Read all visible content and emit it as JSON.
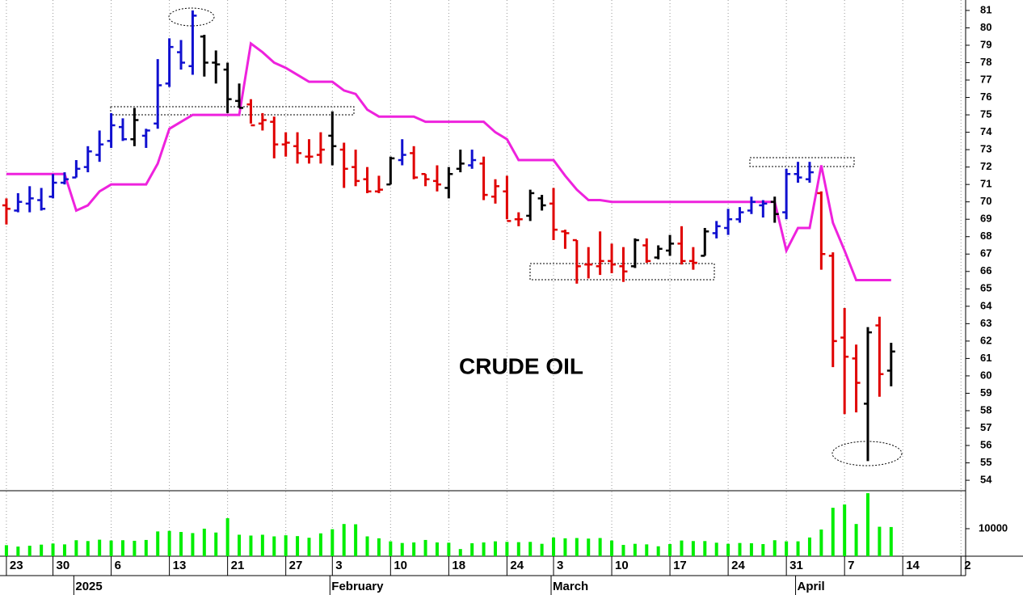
{
  "chart_data": {
    "type": "ohlc",
    "title": "CRUDE OIL",
    "high": [
      70.2,
      70.5,
      70.9,
      70.8,
      71.6,
      71.7,
      72.4,
      73.2,
      74.1,
      75.1,
      74.8,
      75.4,
      74.2,
      78.2,
      79.4,
      79.3,
      81.0,
      79.6,
      78.7,
      78.0,
      76.8,
      75.9,
      75.1,
      74.9,
      74.0,
      74.0,
      73.6,
      74.0,
      75.2,
      73.4,
      73.0,
      72.0,
      71.5,
      72.6,
      73.6,
      73.2,
      71.6,
      72.1,
      72.0,
      73.0,
      73.0,
      72.6,
      71.3,
      71.5,
      69.4,
      70.7,
      70.4,
      70.8,
      68.4,
      67.8,
      67.4,
      68.3,
      67.6,
      67.4,
      67.9,
      67.9,
      67.5,
      68.1,
      68.6,
      67.4,
      68.5,
      68.9,
      69.6,
      69.7,
      70.3,
      70.1,
      70.3,
      71.9,
      72.3,
      72.3,
      70.6,
      67.1,
      63.9,
      61.8,
      62.8,
      63.4,
      61.9
    ],
    "low": [
      68.7,
      69.4,
      69.4,
      69.5,
      70.2,
      71.0,
      71.4,
      71.7,
      72.3,
      73.1,
      73.5,
      73.2,
      73.1,
      74.2,
      76.6,
      77.6,
      77.3,
      77.2,
      76.8,
      75.1,
      75.4,
      74.5,
      74.1,
      72.5,
      72.6,
      72.2,
      72.2,
      72.2,
      72.1,
      70.8,
      70.9,
      70.5,
      70.5,
      71.0,
      72.1,
      71.3,
      70.9,
      70.6,
      70.2,
      71.7,
      71.9,
      70.1,
      69.9,
      69.0,
      68.6,
      68.9,
      69.5,
      67.8,
      67.3,
      65.3,
      65.6,
      65.8,
      65.9,
      65.4,
      66.2,
      66.5,
      66.7,
      66.9,
      66.4,
      66.1,
      66.9,
      67.9,
      68.1,
      68.8,
      69.3,
      69.1,
      68.8,
      69.0,
      71.1,
      71.1,
      66.1,
      60.5,
      57.8,
      57.9,
      55.1,
      58.8,
      59.4
    ],
    "open": [
      69.8,
      69.5,
      69.9,
      70.1,
      70.3,
      71.1,
      71.4,
      72.0,
      72.7,
      73.5,
      74.3,
      73.6,
      73.8,
      74.5,
      76.8,
      78.6,
      77.8,
      79.5,
      78.0,
      77.6,
      75.8,
      75.6,
      74.5,
      74.6,
      73.3,
      73.2,
      72.6,
      72.7,
      73.8,
      73.0,
      72.0,
      71.3,
      70.6,
      71.0,
      72.4,
      72.8,
      71.6,
      71.2,
      70.8,
      71.9,
      72.1,
      72.2,
      70.3,
      70.6,
      69.0,
      69.2,
      70.2,
      69.9,
      68.3,
      67.8,
      66.4,
      66.3,
      66.6,
      66.3,
      66.3,
      67.5,
      66.8,
      67.2,
      67.6,
      66.6,
      66.9,
      68.2,
      68.5,
      69.0,
      69.5,
      69.8,
      70.0,
      69.4,
      71.6,
      71.3,
      70.5,
      66.9,
      62.2,
      61.0,
      58.4,
      62.9,
      60.3
    ],
    "close": [
      69.6,
      70.0,
      70.2,
      69.6,
      71.1,
      71.3,
      71.9,
      72.9,
      73.3,
      74.4,
      73.6,
      74.7,
      74.1,
      76.7,
      78.9,
      78.0,
      80.7,
      78.0,
      77.9,
      75.9,
      75.4,
      74.4,
      74.7,
      73.3,
      73.4,
      72.8,
      72.6,
      73.0,
      73.2,
      71.9,
      71.2,
      70.6,
      70.7,
      72.5,
      72.7,
      71.4,
      71.3,
      71.0,
      71.6,
      72.2,
      72.4,
      70.4,
      70.9,
      68.9,
      69.0,
      70.5,
      69.8,
      68.4,
      68.2,
      66.3,
      66.4,
      66.6,
      66.4,
      66.0,
      67.8,
      66.6,
      67.3,
      67.6,
      66.6,
      66.5,
      68.3,
      68.6,
      69.0,
      69.4,
      70.0,
      69.9,
      69.3,
      71.6,
      71.4,
      71.7,
      67.0,
      62.0,
      61.1,
      59.6,
      62.5,
      60.1,
      61.4
    ],
    "colors": [
      "#e00000",
      "#1010d0",
      "#1010d0",
      "#1010d0",
      "#1010d0",
      "#1010d0",
      "#1010d0",
      "#1010d0",
      "#1010d0",
      "#1010d0",
      "#1010d0",
      "#000000",
      "#1010d0",
      "#1010d0",
      "#1010d0",
      "#1010d0",
      "#1010d0",
      "#000000",
      "#000000",
      "#000000",
      "#000000",
      "#e00000",
      "#e00000",
      "#e00000",
      "#e00000",
      "#e00000",
      "#e00000",
      "#e00000",
      "#000000",
      "#e00000",
      "#e00000",
      "#e00000",
      "#e00000",
      "#000000",
      "#1010d0",
      "#e00000",
      "#e00000",
      "#e00000",
      "#000000",
      "#000000",
      "#1010d0",
      "#e00000",
      "#e00000",
      "#e00000",
      "#e00000",
      "#000000",
      "#000000",
      "#e00000",
      "#e00000",
      "#e00000",
      "#e00000",
      "#e00000",
      "#e00000",
      "#e00000",
      "#000000",
      "#e00000",
      "#000000",
      "#000000",
      "#e00000",
      "#e00000",
      "#000000",
      "#1010d0",
      "#1010d0",
      "#1010d0",
      "#1010d0",
      "#1010d0",
      "#000000",
      "#1010d0",
      "#1010d0",
      "#1010d0",
      "#e00000",
      "#e00000",
      "#e00000",
      "#e00000",
      "#000000",
      "#e00000",
      "#000000"
    ],
    "stop_line": {
      "color": "#ee22dd",
      "values": [
        71.6,
        71.6,
        71.6,
        71.6,
        71.6,
        71.6,
        69.5,
        69.8,
        70.6,
        71.0,
        71.0,
        71.0,
        71.0,
        72.2,
        74.2,
        74.6,
        75.0,
        75.0,
        75.0,
        75.0,
        75.0,
        79.1,
        78.6,
        78.0,
        77.7,
        77.3,
        76.9,
        76.9,
        76.9,
        76.4,
        76.2,
        75.3,
        74.9,
        74.9,
        74.9,
        74.9,
        74.6,
        74.6,
        74.6,
        74.6,
        74.6,
        74.6,
        74.0,
        73.6,
        72.4,
        72.4,
        72.4,
        72.4,
        71.5,
        70.7,
        70.1,
        70.1,
        70.0,
        70.0,
        70.0,
        70.0,
        70.0,
        70.0,
        70.0,
        70.0,
        70.0,
        70.0,
        70.0,
        70.0,
        70.0,
        70.0,
        70.0,
        67.2,
        68.5,
        68.5,
        72.1,
        68.8,
        67.2,
        65.5,
        65.5,
        65.5,
        65.5
      ]
    },
    "volume": {
      "color": "#00ee00",
      "values": [
        4000,
        3500,
        3800,
        4200,
        4600,
        4300,
        5800,
        5500,
        6000,
        5700,
        5800,
        5600,
        5900,
        9000,
        9200,
        8800,
        8400,
        10000,
        8600,
        13800,
        7800,
        7500,
        7800,
        7200,
        7600,
        7300,
        6700,
        8300,
        9800,
        11700,
        11600,
        7200,
        6500,
        5400,
        4800,
        5000,
        5900,
        5000,
        4900,
        2600,
        4700,
        5000,
        5400,
        5200,
        5100,
        5200,
        4500,
        6800,
        6500,
        6600,
        6400,
        6600,
        5700,
        4100,
        4500,
        4300,
        3600,
        4400,
        5700,
        5500,
        5500,
        4900,
        4500,
        4800,
        4700,
        4400,
        5800,
        5400,
        5400,
        6800,
        9700,
        17600,
        18800,
        11700,
        22900,
        10700,
        10600
      ],
      "ylim": [
        0,
        23800
      ],
      "yticks": [
        10000
      ]
    },
    "ylim": [
      53.4,
      81.6
    ],
    "yticks": [
      54,
      55,
      56,
      57,
      58,
      59,
      60,
      61,
      62,
      63,
      64,
      65,
      66,
      67,
      68,
      69,
      70,
      71,
      72,
      73,
      74,
      75,
      76,
      77,
      78,
      79,
      80,
      81
    ],
    "xlim": [
      -0.55,
      82.4
    ],
    "xticks": [
      {
        "value": 0,
        "label": "23"
      },
      {
        "value": 4,
        "label": "30"
      },
      {
        "value": 9,
        "label": "6"
      },
      {
        "value": 14,
        "label": "13"
      },
      {
        "value": 19,
        "label": "21"
      },
      {
        "value": 24,
        "label": "27"
      },
      {
        "value": 28,
        "label": "3"
      },
      {
        "value": 33,
        "label": "10"
      },
      {
        "value": 38,
        "label": "18"
      },
      {
        "value": 43,
        "label": "24"
      },
      {
        "value": 47,
        "label": "3"
      },
      {
        "value": 52,
        "label": "10"
      },
      {
        "value": 57,
        "label": "17"
      },
      {
        "value": 62,
        "label": "24"
      },
      {
        "value": 67,
        "label": "31"
      },
      {
        "value": 72,
        "label": "7"
      },
      {
        "value": 77,
        "label": "14"
      },
      {
        "value": 82,
        "label": "2"
      }
    ],
    "month_ticks": [
      {
        "value": 6,
        "label": "2025"
      },
      {
        "value": 28,
        "label": "February"
      },
      {
        "value": 47,
        "label": "March"
      },
      {
        "value": 68,
        "label": "April"
      }
    ],
    "grid": true
  }
}
